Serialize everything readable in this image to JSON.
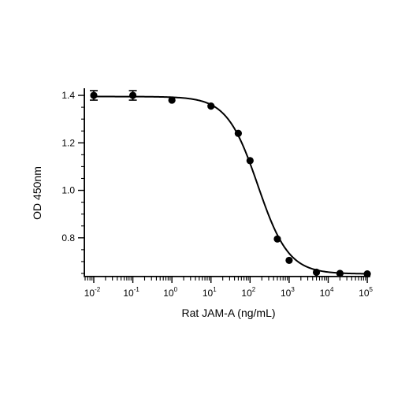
{
  "chart_data": {
    "type": "scatter",
    "xlabel": "Rat JAM-A (ng/mL)",
    "ylabel": "OD 450nm",
    "x_scale": "log",
    "xlim": [
      0.006,
      120000
    ],
    "ylim": [
      0.64,
      1.43
    ],
    "x_ticks": [
      {
        "base": "10",
        "exp": "-2"
      },
      {
        "base": "10",
        "exp": "-1"
      },
      {
        "base": "10",
        "exp": "0"
      },
      {
        "base": "10",
        "exp": "1"
      },
      {
        "base": "10",
        "exp": "2"
      },
      {
        "base": "10",
        "exp": "3"
      },
      {
        "base": "10",
        "exp": "4"
      },
      {
        "base": "10",
        "exp": "5"
      }
    ],
    "y_ticks": [
      "0.8",
      "1.0",
      "1.2",
      "1.4"
    ],
    "points": [
      {
        "x": 0.01,
        "y": 1.4,
        "err": 0.02
      },
      {
        "x": 0.1,
        "y": 1.4,
        "err": 0.02
      },
      {
        "x": 1,
        "y": 1.38,
        "err": 0
      },
      {
        "x": 10,
        "y": 1.355,
        "err": 0
      },
      {
        "x": 50,
        "y": 1.24,
        "err": 0
      },
      {
        "x": 100,
        "y": 1.125,
        "err": 0
      },
      {
        "x": 500,
        "y": 0.795,
        "err": 0
      },
      {
        "x": 1000,
        "y": 0.705,
        "err": 0
      },
      {
        "x": 5000,
        "y": 0.655,
        "err": 0
      },
      {
        "x": 20000,
        "y": 0.65,
        "err": 0
      },
      {
        "x": 100000,
        "y": 0.648,
        "err": 0
      }
    ],
    "fit": {
      "top": 1.395,
      "bottom": 0.648,
      "ec50": 158,
      "hill": 1.1
    },
    "grid": false,
    "legend": "none"
  }
}
